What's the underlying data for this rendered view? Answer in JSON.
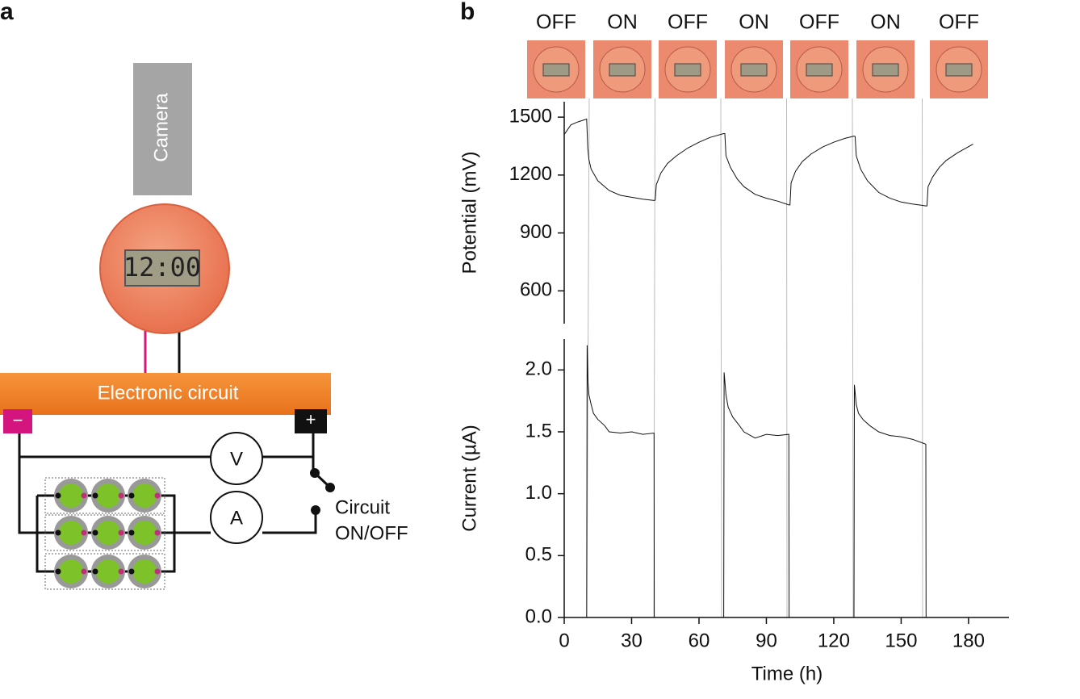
{
  "panel_a": {
    "label": "a",
    "camera": "Camera",
    "clock": "12:00",
    "circuit": "Electronic circuit",
    "minus": "−",
    "plus": "+",
    "voltmeter": "V",
    "ammeter": "A",
    "switch": [
      "Circuit",
      "ON/OFF"
    ]
  },
  "panel_b": {
    "label": "b",
    "phases": [
      "OFF",
      "ON",
      "OFF",
      "ON",
      "OFF",
      "ON",
      "OFF"
    ]
  },
  "chart_data": [
    {
      "type": "line",
      "y_label": "Potential (mV)",
      "xlim": [
        0,
        198
      ],
      "ylim": [
        430,
        1580
      ],
      "yticks": [
        600,
        900,
        1200,
        1500
      ],
      "series": [
        {
          "color": "#111111",
          "x": [
            0,
            3,
            6,
            10,
            10.5,
            11,
            12,
            15,
            20,
            25,
            30,
            35,
            40,
            40.5,
            41,
            43,
            46,
            50,
            55,
            60,
            65,
            71,
            71.5,
            72,
            74,
            77,
            80,
            85,
            90,
            95,
            100,
            100.5,
            101,
            103,
            106,
            110,
            115,
            120,
            125,
            129,
            129.5,
            130,
            132,
            135,
            140,
            145,
            150,
            155,
            161,
            161.5,
            162,
            164,
            167,
            170,
            175,
            182
          ],
          "values": [
            1410,
            1460,
            1475,
            1490,
            1340,
            1280,
            1230,
            1170,
            1120,
            1095,
            1085,
            1075,
            1068,
            1070,
            1150,
            1210,
            1260,
            1300,
            1340,
            1370,
            1395,
            1415,
            1415,
            1300,
            1240,
            1180,
            1140,
            1100,
            1080,
            1065,
            1045,
            1045,
            1160,
            1220,
            1270,
            1310,
            1345,
            1370,
            1390,
            1402,
            1400,
            1300,
            1230,
            1170,
            1110,
            1080,
            1060,
            1050,
            1040,
            1040,
            1140,
            1190,
            1240,
            1275,
            1315,
            1360
          ]
        }
      ]
    },
    {
      "type": "line",
      "x_label": "Time (h)",
      "y_label": "Current (µA)",
      "xlim": [
        0,
        198
      ],
      "ylim": [
        0,
        2.25
      ],
      "xticks": [
        0,
        30,
        60,
        90,
        120,
        150,
        180
      ],
      "yticks": [
        {
          "value": 0,
          "label": "0.0"
        },
        0.5,
        {
          "value": 1,
          "label": "1.0"
        },
        1.5,
        {
          "value": 2,
          "label": "2.0"
        }
      ],
      "series": [
        {
          "color": "#111111",
          "x": [
            0,
            10,
            10.2,
            10.6,
            11,
            12,
            13,
            15,
            18,
            20,
            25,
            30,
            35,
            40,
            40.1,
            71,
            71.2,
            72,
            73,
            75,
            78,
            80,
            85,
            90,
            95,
            100,
            100.1,
            129,
            129.2,
            130,
            131,
            133,
            136,
            140,
            145,
            150,
            155,
            161,
            161.1,
            182
          ],
          "values": [
            0,
            0,
            2.2,
            1.9,
            1.8,
            1.72,
            1.65,
            1.6,
            1.55,
            1.5,
            1.49,
            1.5,
            1.48,
            1.49,
            0,
            0,
            1.98,
            1.8,
            1.7,
            1.62,
            1.55,
            1.5,
            1.45,
            1.48,
            1.47,
            1.48,
            0,
            0,
            1.88,
            1.72,
            1.65,
            1.6,
            1.55,
            1.5,
            1.47,
            1.46,
            1.44,
            1.4,
            0,
            0
          ]
        }
      ]
    }
  ]
}
